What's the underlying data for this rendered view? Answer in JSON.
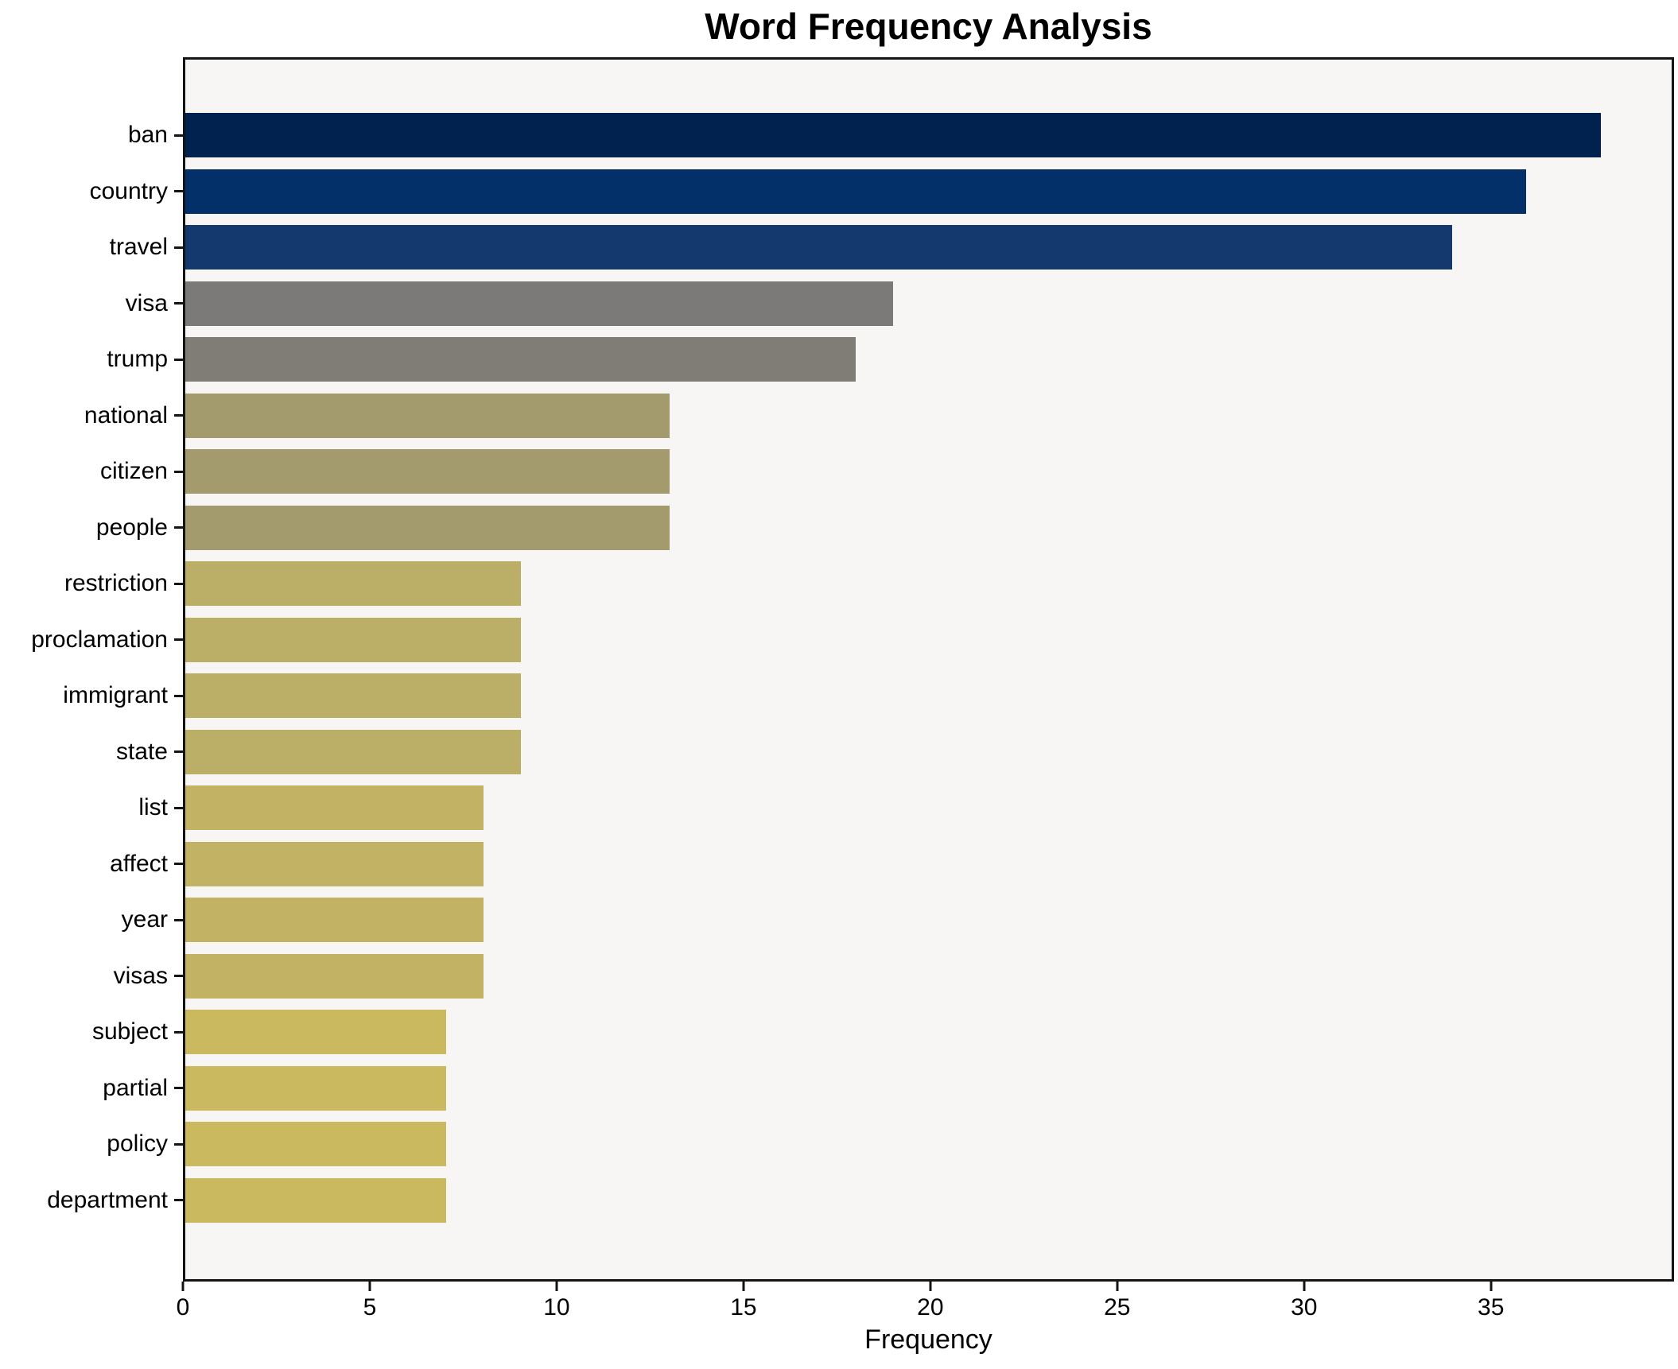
{
  "title": "Word Frequency Analysis",
  "chart_data": {
    "type": "bar",
    "orientation": "horizontal",
    "title": "Word Frequency Analysis",
    "xlabel": "Frequency",
    "ylabel": "",
    "xlim": [
      0,
      39.9
    ],
    "xticks": [
      0,
      5,
      10,
      15,
      20,
      25,
      30,
      35
    ],
    "grid": false,
    "legend": "none",
    "categories": [
      "ban",
      "country",
      "travel",
      "visa",
      "trump",
      "national",
      "citizen",
      "people",
      "restriction",
      "proclamation",
      "immigrant",
      "state",
      "list",
      "affect",
      "year",
      "visas",
      "subject",
      "partial",
      "policy",
      "department"
    ],
    "values": [
      38,
      36,
      34,
      19,
      18,
      13,
      13,
      13,
      9,
      9,
      9,
      9,
      8,
      8,
      8,
      8,
      7,
      7,
      7,
      7
    ],
    "bar_colors": [
      "#01224e",
      "#043069",
      "#14396f",
      "#7b7a78",
      "#807d76",
      "#a39b6e",
      "#a39b6e",
      "#a39b6e",
      "#bbae67",
      "#bbae67",
      "#bbae67",
      "#bbae67",
      "#c2b364",
      "#c2b364",
      "#c2b364",
      "#c2b364",
      "#cbb95f",
      "#cbb95f",
      "#cbb95f",
      "#cbb95f"
    ],
    "plot_background": "#f7f6f4",
    "figure_background": "#ffffff",
    "axis_color": "#141414",
    "text_color": "#000000"
  }
}
